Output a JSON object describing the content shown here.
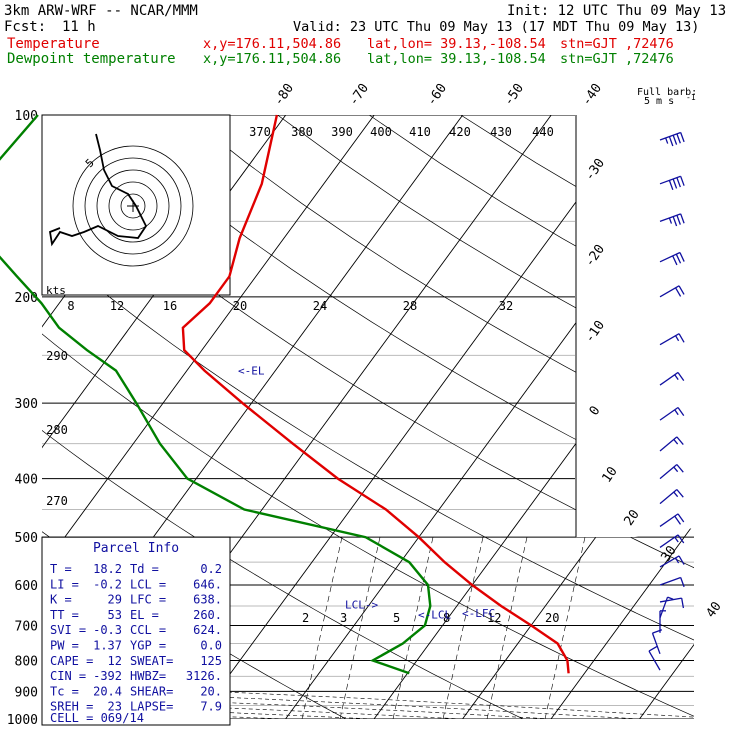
{
  "header": {
    "title": "3km ARW-WRF -- NCAR/MMM",
    "init": "Init: 12 UTC Thu 09 May 13",
    "fcst_label": "Fcst:",
    "fcst_value": "11 h",
    "valid": "Valid: 23 UTC Thu 09 May 13 (17 MDT Thu 09 May 13)"
  },
  "legend": {
    "temperature": {
      "name": "Temperature",
      "xy": "x,y=176.11,504.86",
      "latlon": "lat,lon= 39.13,-108.54",
      "stn": "stn=GJT ,72476",
      "color": "#e00000"
    },
    "dewpoint": {
      "name": "Dewpoint temperature",
      "xy": "x,y=176.11,504.86",
      "latlon": "lat,lon= 39.13,-108.54",
      "stn": "stn=GJT ,72476",
      "color": "#008000"
    }
  },
  "chart_data": {
    "type": "line",
    "pressure_ticks": [
      "100",
      "200",
      "300",
      "400",
      "500",
      "600",
      "700",
      "800",
      "900",
      "1000"
    ],
    "isotherm_labels": [
      "-80",
      "-70",
      "-60",
      "-50",
      "-40",
      "-30",
      "-20",
      "-10",
      "0",
      "10",
      "20",
      "30",
      "40"
    ],
    "theta_labels": [
      "370",
      "380",
      "390",
      "400",
      "410",
      "420",
      "430",
      "440"
    ],
    "theta_e_labels": [
      "290",
      "280",
      "270"
    ],
    "mixing_ratio_labels": [
      "2",
      "3",
      "5",
      "8",
      "12",
      "20"
    ],
    "wind_speed_axis_labels": [
      "8",
      "12",
      "16",
      "20",
      "24",
      "28",
      "32"
    ],
    "hodograph_speed_unit": "kts",
    "hodograph_ring_label": "5",
    "barb_header": "Full barb:",
    "barb_unit": "5 m s",
    "barb_unit_sup": "-1",
    "level_markers": [
      {
        "label": "<-EL",
        "p": 265
      },
      {
        "label": "LCL->",
        "p": 646
      },
      {
        "label": "<-LCL",
        "p": 672
      },
      {
        "label": "<-LFC",
        "p": 668
      }
    ],
    "series": [
      {
        "name": "Temperature",
        "color": "#e00000",
        "points": [
          {
            "p": 100,
            "t": -61
          },
          {
            "p": 130,
            "t": -57
          },
          {
            "p": 160,
            "t": -55
          },
          {
            "p": 185,
            "t": -53
          },
          {
            "p": 205,
            "t": -53
          },
          {
            "p": 225,
            "t": -54
          },
          {
            "p": 245,
            "t": -52
          },
          {
            "p": 265,
            "t": -48
          },
          {
            "p": 300,
            "t": -41
          },
          {
            "p": 350,
            "t": -32
          },
          {
            "p": 400,
            "t": -24
          },
          {
            "p": 450,
            "t": -16
          },
          {
            "p": 500,
            "t": -10
          },
          {
            "p": 550,
            "t": -5
          },
          {
            "p": 600,
            "t": 0
          },
          {
            "p": 650,
            "t": 5
          },
          {
            "p": 700,
            "t": 10
          },
          {
            "p": 750,
            "t": 14.5
          },
          {
            "p": 800,
            "t": 17
          },
          {
            "p": 840,
            "t": 18.2
          }
        ]
      },
      {
        "name": "Dewpoint temperature",
        "color": "#008000",
        "points": [
          {
            "p": 100,
            "t": -88
          },
          {
            "p": 130,
            "t": -89
          },
          {
            "p": 160,
            "t": -84
          },
          {
            "p": 185,
            "t": -77
          },
          {
            "p": 205,
            "t": -72
          },
          {
            "p": 225,
            "t": -68
          },
          {
            "p": 245,
            "t": -63
          },
          {
            "p": 265,
            "t": -58
          },
          {
            "p": 300,
            "t": -53
          },
          {
            "p": 350,
            "t": -47
          },
          {
            "p": 400,
            "t": -41
          },
          {
            "p": 450,
            "t": -32
          },
          {
            "p": 500,
            "t": -16
          },
          {
            "p": 550,
            "t": -9
          },
          {
            "p": 600,
            "t": -5
          },
          {
            "p": 650,
            "t": -3
          },
          {
            "p": 700,
            "t": -2
          },
          {
            "p": 750,
            "t": -3
          },
          {
            "p": 800,
            "t": -5
          },
          {
            "p": 840,
            "t": 0.2
          }
        ]
      }
    ],
    "wind_profile": [
      {
        "p": 110,
        "spd": 45,
        "dir": 250
      },
      {
        "p": 130,
        "spd": 40,
        "dir": 250
      },
      {
        "p": 150,
        "spd": 35,
        "dir": 250
      },
      {
        "p": 175,
        "spd": 30,
        "dir": 245
      },
      {
        "p": 200,
        "spd": 20,
        "dir": 240
      },
      {
        "p": 240,
        "spd": 15,
        "dir": 240
      },
      {
        "p": 280,
        "spd": 15,
        "dir": 235
      },
      {
        "p": 320,
        "spd": 15,
        "dir": 235
      },
      {
        "p": 360,
        "spd": 15,
        "dir": 230
      },
      {
        "p": 400,
        "spd": 15,
        "dir": 230
      },
      {
        "p": 440,
        "spd": 15,
        "dir": 230
      },
      {
        "p": 480,
        "spd": 20,
        "dir": 235
      },
      {
        "p": 520,
        "spd": 15,
        "dir": 235
      },
      {
        "p": 560,
        "spd": 15,
        "dir": 240
      },
      {
        "p": 600,
        "spd": 10,
        "dir": 250
      },
      {
        "p": 640,
        "spd": 10,
        "dir": 260
      },
      {
        "p": 680,
        "spd": 5,
        "dir": 200
      },
      {
        "p": 720,
        "spd": 5,
        "dir": 180
      },
      {
        "p": 780,
        "spd": 10,
        "dir": 160
      },
      {
        "p": 830,
        "spd": 10,
        "dir": 150
      }
    ]
  },
  "parcel_info": {
    "title": "Parcel Info",
    "rows": [
      [
        "T  =",
        "18.2",
        "Td =",
        "0.2"
      ],
      [
        "LI =",
        "-0.2",
        "LCL =",
        "646."
      ],
      [
        "K  =",
        "29",
        "LFC =",
        "638."
      ],
      [
        "TT =",
        "53",
        "EL =",
        "260."
      ],
      [
        "SVI =",
        "-0.3",
        "CCL =",
        "624."
      ],
      [
        "PW =",
        "1.37",
        "YGP =",
        "0.0"
      ],
      [
        "CAPE =",
        "12",
        "SWEAT=",
        "125"
      ],
      [
        "CIN =",
        "-392",
        "HWBZ=",
        "3126."
      ],
      [
        "Tc =",
        "20.4",
        "SHEAR=",
        "20."
      ],
      [
        "SREH =",
        "23",
        "LAPSE=",
        "7.9"
      ]
    ],
    "cell": "CELL = 069/14"
  }
}
